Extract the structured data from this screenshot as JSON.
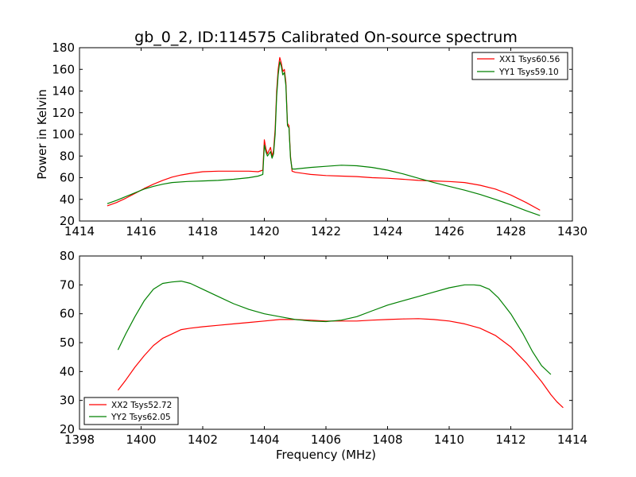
{
  "title": "gb_0_2, ID:114575 Calibrated On-source spectrum",
  "chart_data": [
    {
      "type": "line",
      "ylabel": "Power in Kelvin",
      "xlabel": "",
      "xlim": [
        1414,
        1430
      ],
      "ylim": [
        20,
        180
      ],
      "xticks": [
        1414,
        1416,
        1418,
        1420,
        1422,
        1424,
        1426,
        1428,
        1430
      ],
      "yticks": [
        20,
        40,
        60,
        80,
        100,
        120,
        140,
        160,
        180
      ],
      "legend_position": "top-right",
      "series": [
        {
          "name": "XX1 Tsys60.56",
          "color": "#ff0000",
          "points": [
            [
              1414.9,
              34
            ],
            [
              1415.2,
              37
            ],
            [
              1415.5,
              41
            ],
            [
              1415.8,
              45.5
            ],
            [
              1416.1,
              50
            ],
            [
              1416.4,
              54
            ],
            [
              1416.7,
              57.5
            ],
            [
              1417.0,
              60.5
            ],
            [
              1417.3,
              62.5
            ],
            [
              1417.6,
              64
            ],
            [
              1418.0,
              65.5
            ],
            [
              1418.5,
              66
            ],
            [
              1419.0,
              66
            ],
            [
              1419.5,
              66
            ],
            [
              1419.8,
              65.5
            ],
            [
              1419.95,
              67
            ],
            [
              1420.0,
              95
            ],
            [
              1420.05,
              87
            ],
            [
              1420.1,
              82
            ],
            [
              1420.2,
              88
            ],
            [
              1420.25,
              80
            ],
            [
              1420.3,
              85
            ],
            [
              1420.35,
              105
            ],
            [
              1420.4,
              140
            ],
            [
              1420.45,
              160
            ],
            [
              1420.5,
              171
            ],
            [
              1420.55,
              166
            ],
            [
              1420.6,
              158
            ],
            [
              1420.65,
              160
            ],
            [
              1420.7,
              148
            ],
            [
              1420.75,
              110
            ],
            [
              1420.8,
              108
            ],
            [
              1420.85,
              80
            ],
            [
              1420.9,
              66
            ],
            [
              1421.0,
              65
            ],
            [
              1421.5,
              63
            ],
            [
              1422.0,
              62
            ],
            [
              1422.5,
              61.5
            ],
            [
              1423.0,
              61
            ],
            [
              1423.5,
              60
            ],
            [
              1424.0,
              59.5
            ],
            [
              1424.5,
              58.5
            ],
            [
              1425.0,
              57.5
            ],
            [
              1425.5,
              57
            ],
            [
              1426.0,
              56.5
            ],
            [
              1426.5,
              55.5
            ],
            [
              1427.0,
              53
            ],
            [
              1427.5,
              49.5
            ],
            [
              1428.0,
              44
            ],
            [
              1428.5,
              37
            ],
            [
              1428.95,
              30
            ]
          ]
        },
        {
          "name": "YY1 Tsys59.10",
          "color": "#008000",
          "points": [
            [
              1414.9,
              36
            ],
            [
              1415.2,
              39
            ],
            [
              1415.5,
              42.5
            ],
            [
              1415.8,
              46
            ],
            [
              1416.1,
              49.5
            ],
            [
              1416.4,
              52
            ],
            [
              1416.7,
              54
            ],
            [
              1417.0,
              55.5
            ],
            [
              1417.5,
              56.5
            ],
            [
              1418.0,
              57
            ],
            [
              1418.5,
              57.5
            ],
            [
              1419.0,
              58.5
            ],
            [
              1419.5,
              60
            ],
            [
              1419.8,
              61.5
            ],
            [
              1419.95,
              63
            ],
            [
              1420.0,
              90
            ],
            [
              1420.05,
              84
            ],
            [
              1420.1,
              80
            ],
            [
              1420.2,
              84
            ],
            [
              1420.25,
              78
            ],
            [
              1420.3,
              82
            ],
            [
              1420.35,
              100
            ],
            [
              1420.4,
              135
            ],
            [
              1420.45,
              155
            ],
            [
              1420.5,
              167
            ],
            [
              1420.55,
              163
            ],
            [
              1420.6,
              155
            ],
            [
              1420.65,
              157
            ],
            [
              1420.7,
              145
            ],
            [
              1420.75,
              108
            ],
            [
              1420.8,
              106
            ],
            [
              1420.85,
              78
            ],
            [
              1420.9,
              68
            ],
            [
              1421.0,
              68
            ],
            [
              1421.5,
              69.5
            ],
            [
              1422.0,
              70.5
            ],
            [
              1422.5,
              71.5
            ],
            [
              1423.0,
              71
            ],
            [
              1423.5,
              69.5
            ],
            [
              1424.0,
              67
            ],
            [
              1424.5,
              63.5
            ],
            [
              1425.0,
              59.5
            ],
            [
              1425.5,
              55.5
            ],
            [
              1426.0,
              52
            ],
            [
              1426.5,
              48.5
            ],
            [
              1427.0,
              44.5
            ],
            [
              1427.5,
              40
            ],
            [
              1428.0,
              35
            ],
            [
              1428.5,
              29.5
            ],
            [
              1428.95,
              25
            ]
          ]
        }
      ]
    },
    {
      "type": "line",
      "ylabel": "",
      "xlabel": "Frequency (MHz)",
      "xlim": [
        1398,
        1414
      ],
      "ylim": [
        20,
        80
      ],
      "xticks": [
        1398,
        1400,
        1402,
        1404,
        1406,
        1408,
        1410,
        1412,
        1414
      ],
      "yticks": [
        20,
        30,
        40,
        50,
        60,
        70,
        80
      ],
      "legend_position": "bottom-left",
      "series": [
        {
          "name": "XX2 Tsys52.72",
          "color": "#ff0000",
          "points": [
            [
              1399.25,
              33.5
            ],
            [
              1399.5,
              37
            ],
            [
              1399.8,
              41.5
            ],
            [
              1400.1,
              45.5
            ],
            [
              1400.4,
              49
            ],
            [
              1400.7,
              51.5
            ],
            [
              1401.0,
              53
            ],
            [
              1401.3,
              54.5
            ],
            [
              1401.6,
              55
            ],
            [
              1402.0,
              55.5
            ],
            [
              1402.5,
              56
            ],
            [
              1403.0,
              56.5
            ],
            [
              1403.5,
              57
            ],
            [
              1404.0,
              57.5
            ],
            [
              1404.5,
              58
            ],
            [
              1405.0,
              58
            ],
            [
              1405.5,
              57.8
            ],
            [
              1406.0,
              57.5
            ],
            [
              1406.5,
              57.5
            ],
            [
              1407.0,
              57.5
            ],
            [
              1407.5,
              57.8
            ],
            [
              1408.0,
              58
            ],
            [
              1408.5,
              58.2
            ],
            [
              1409.0,
              58.3
            ],
            [
              1409.5,
              58
            ],
            [
              1410.0,
              57.5
            ],
            [
              1410.5,
              56.5
            ],
            [
              1411.0,
              55
            ],
            [
              1411.5,
              52.5
            ],
            [
              1412.0,
              48.5
            ],
            [
              1412.5,
              43
            ],
            [
              1413.0,
              36.5
            ],
            [
              1413.3,
              32
            ],
            [
              1413.5,
              29.5
            ],
            [
              1413.7,
              27.5
            ]
          ]
        },
        {
          "name": "YY2 Tsys62.05",
          "color": "#008000",
          "points": [
            [
              1399.25,
              47.5
            ],
            [
              1399.5,
              53
            ],
            [
              1399.8,
              59
            ],
            [
              1400.1,
              64.5
            ],
            [
              1400.4,
              68.5
            ],
            [
              1400.7,
              70.5
            ],
            [
              1401.0,
              71
            ],
            [
              1401.3,
              71.3
            ],
            [
              1401.6,
              70.5
            ],
            [
              1402.0,
              68.5
            ],
            [
              1402.5,
              66
            ],
            [
              1403.0,
              63.5
            ],
            [
              1403.5,
              61.5
            ],
            [
              1404.0,
              60
            ],
            [
              1404.5,
              59
            ],
            [
              1405.0,
              58
            ],
            [
              1405.5,
              57.5
            ],
            [
              1406.0,
              57.3
            ],
            [
              1406.5,
              57.8
            ],
            [
              1407.0,
              59
            ],
            [
              1407.5,
              61
            ],
            [
              1408.0,
              63
            ],
            [
              1408.5,
              64.5
            ],
            [
              1409.0,
              66
            ],
            [
              1409.5,
              67.5
            ],
            [
              1410.0,
              69
            ],
            [
              1410.5,
              70
            ],
            [
              1410.8,
              70
            ],
            [
              1411.0,
              69.8
            ],
            [
              1411.3,
              68.5
            ],
            [
              1411.6,
              65.5
            ],
            [
              1412.0,
              60
            ],
            [
              1412.4,
              53
            ],
            [
              1412.7,
              47
            ],
            [
              1413.0,
              42
            ],
            [
              1413.3,
              39
            ]
          ]
        }
      ]
    }
  ]
}
